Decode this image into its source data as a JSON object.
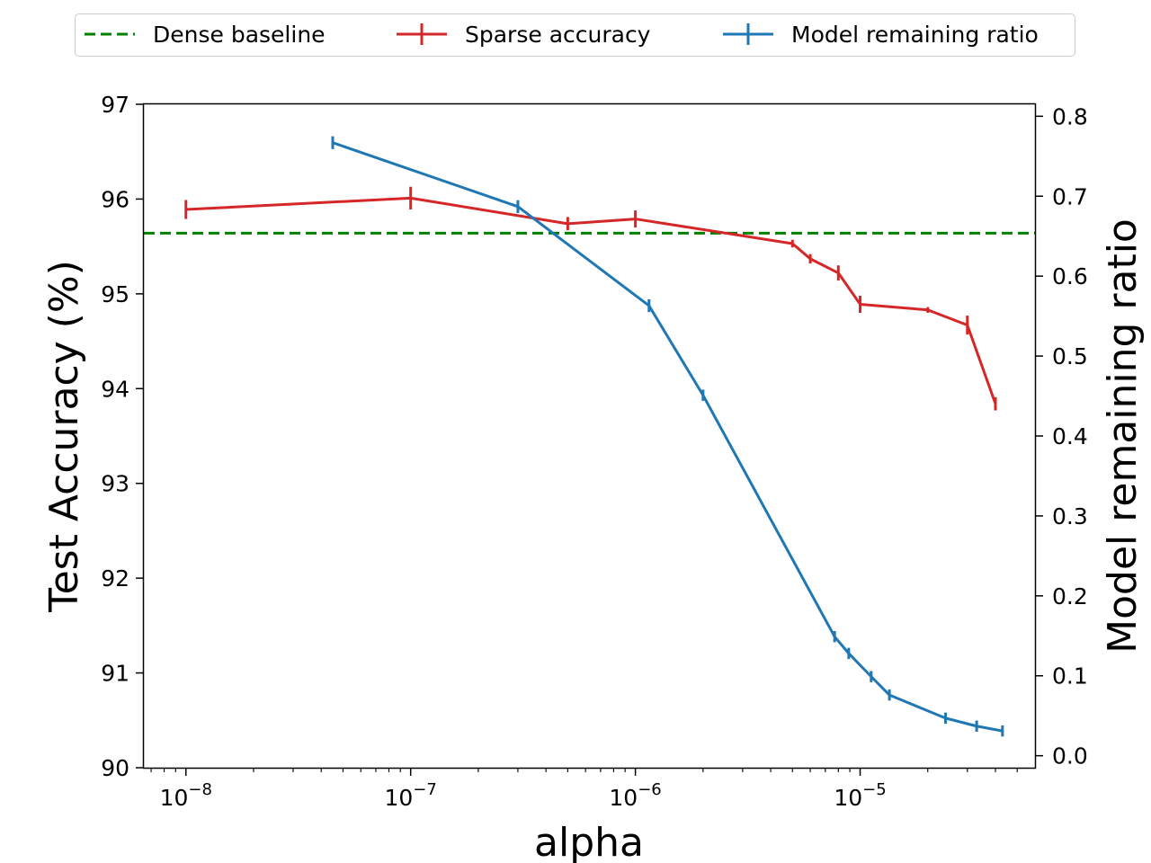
{
  "chart_data": {
    "type": "line",
    "xlabel": "alpha",
    "ylabel_left": "Test Accuracy (%)",
    "ylabel_right": "Model remaining ratio",
    "xscale": "log",
    "xlim": [
      6.5e-09,
      6e-05
    ],
    "ylim_left": [
      90,
      97
    ],
    "ylim_right": [
      -0.015,
      0.815
    ],
    "x_ticks": [
      {
        "value": 1e-08,
        "base": "10",
        "exp": "−8"
      },
      {
        "value": 1e-07,
        "base": "10",
        "exp": "−7"
      },
      {
        "value": 1e-06,
        "base": "10",
        "exp": "−6"
      },
      {
        "value": 1e-05,
        "base": "10",
        "exp": "−5"
      }
    ],
    "y_ticks_left": [
      90,
      91,
      92,
      93,
      94,
      95,
      96,
      97
    ],
    "y_ticks_right": [
      "0.0",
      "0.1",
      "0.2",
      "0.3",
      "0.4",
      "0.5",
      "0.6",
      "0.7",
      "0.8"
    ],
    "legend": [
      {
        "label": "Dense baseline",
        "color": "#008000",
        "style": "dashed"
      },
      {
        "label": "Sparse accuracy",
        "color": "#d62728",
        "style": "errorbar"
      },
      {
        "label": "Model remaining ratio",
        "color": "#1f77b4",
        "style": "errorbar"
      }
    ],
    "baseline": {
      "name": "Dense baseline",
      "axis": "left",
      "value": 95.64,
      "color": "#008000"
    },
    "series": [
      {
        "name": "Sparse accuracy",
        "axis": "left",
        "color": "#d62728",
        "x": [
          1e-08,
          1e-07,
          5e-07,
          1e-06,
          5e-06,
          6e-06,
          8e-06,
          1e-05,
          2e-05,
          3e-05,
          4e-05
        ],
        "y": [
          95.89,
          96.01,
          95.74,
          95.79,
          95.53,
          95.37,
          95.22,
          94.89,
          94.83,
          94.67,
          93.84
        ],
        "err": [
          0.1,
          0.12,
          0.07,
          0.09,
          0.04,
          0.05,
          0.08,
          0.09,
          0.03,
          0.1,
          0.07
        ]
      },
      {
        "name": "Model remaining ratio",
        "axis": "right",
        "color": "#1f77b4",
        "x": [
          4.5e-08,
          3e-07,
          1.15e-06,
          2e-06,
          7.7e-06,
          8.9e-06,
          1.12e-05,
          1.35e-05,
          2.4e-05,
          3.3e-05,
          4.3e-05
        ],
        "y": [
          0.767,
          0.687,
          0.563,
          0.451,
          0.149,
          0.128,
          0.099,
          0.076,
          0.047,
          0.037,
          0.031
        ],
        "err": [
          0.008,
          0.008,
          0.008,
          0.007,
          0.007,
          0.007,
          0.007,
          0.007,
          0.007,
          0.007,
          0.007
        ]
      }
    ]
  }
}
